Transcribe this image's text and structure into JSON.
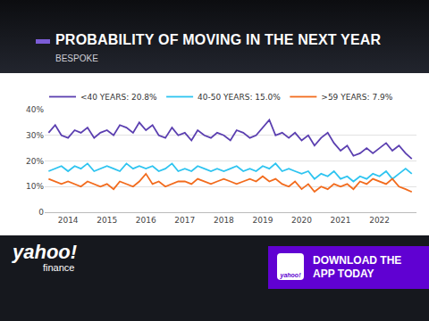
{
  "chart_data": {
    "type": "line",
    "title": "PROBABILITY OF MOVING IN THE NEXT YEAR",
    "subtitle": "BESPOKE",
    "x": [
      2013.5,
      2013.67,
      2013.83,
      2014.0,
      2014.17,
      2014.33,
      2014.5,
      2014.67,
      2014.83,
      2015.0,
      2015.17,
      2015.33,
      2015.5,
      2015.67,
      2015.83,
      2016.0,
      2016.17,
      2016.33,
      2016.5,
      2016.67,
      2016.83,
      2017.0,
      2017.17,
      2017.33,
      2017.5,
      2017.67,
      2017.83,
      2018.0,
      2018.17,
      2018.33,
      2018.5,
      2018.67,
      2018.83,
      2019.0,
      2019.17,
      2019.33,
      2019.5,
      2019.67,
      2019.83,
      2020.0,
      2020.17,
      2020.33,
      2020.5,
      2020.67,
      2020.83,
      2021.0,
      2021.17,
      2021.33,
      2021.5,
      2021.67,
      2021.83,
      2022.0,
      2022.17,
      2022.33,
      2022.5,
      2022.67,
      2022.83
    ],
    "series": [
      {
        "name": "<40 YEARS: 20.8%",
        "color": "#5b3fb0",
        "values": [
          31,
          34,
          30,
          29,
          32,
          31,
          33,
          29,
          31,
          32,
          30,
          34,
          33,
          31,
          35,
          32,
          34,
          30,
          29,
          33,
          30,
          31,
          28,
          32,
          30,
          29,
          31,
          30,
          28,
          32,
          31,
          29,
          30,
          33,
          36,
          30,
          31,
          29,
          31,
          28,
          30,
          26,
          29,
          31,
          27,
          24,
          26,
          22,
          23,
          25,
          23,
          25,
          27,
          24,
          26,
          23,
          20.8
        ]
      },
      {
        "name": "40-50 YEARS: 15.0%",
        "color": "#2ec4f0",
        "values": [
          16,
          17,
          18,
          16,
          18,
          17,
          19,
          16,
          17,
          18,
          17,
          16,
          19,
          17,
          18,
          17,
          18,
          16,
          17,
          19,
          16,
          17,
          16,
          18,
          17,
          16,
          17,
          16,
          17,
          18,
          16,
          17,
          16,
          18,
          17,
          19,
          16,
          17,
          16,
          15,
          16,
          13,
          15,
          14,
          16,
          13,
          14,
          12,
          14,
          13,
          15,
          14,
          16,
          13,
          15,
          17,
          15.0
        ]
      },
      {
        "name": ">59 YEARS: 7.9%",
        "color": "#f26b1d",
        "values": [
          13,
          12,
          11,
          12,
          11,
          10,
          12,
          11,
          10,
          11,
          9,
          12,
          11,
          10,
          12,
          15,
          11,
          12,
          10,
          11,
          12,
          12,
          11,
          13,
          12,
          11,
          12,
          13,
          12,
          11,
          12,
          13,
          12,
          14,
          12,
          13,
          11,
          10,
          12,
          9,
          11,
          8,
          10,
          9,
          11,
          10,
          11,
          9,
          12,
          11,
          13,
          12,
          11,
          13,
          10,
          9,
          7.9
        ]
      }
    ],
    "xlim": [
      2013.4,
      2022.95
    ],
    "xticks": [
      2014,
      2015,
      2016,
      2017,
      2018,
      2019,
      2020,
      2021,
      2022
    ],
    "ylim": [
      0,
      40
    ],
    "yticks": [
      0,
      {
        "value": 10,
        "label": "10%"
      },
      {
        "value": 20,
        "label": "20%"
      },
      {
        "value": 30,
        "label": "30%"
      },
      {
        "value": 40,
        "label": "40%"
      }
    ],
    "grid": true
  },
  "page": {
    "logo": [
      "yahoo!",
      "finance"
    ],
    "app_icon": "yahoo!",
    "banner": "DOWNLOAD THE APP TODAY"
  }
}
